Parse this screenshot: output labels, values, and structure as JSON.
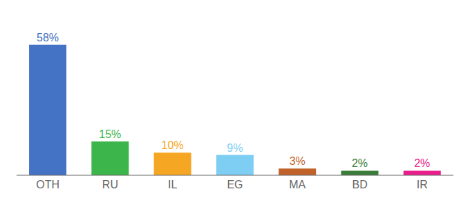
{
  "chart_data": {
    "type": "bar",
    "categories": [
      "OTH",
      "RU",
      "IL",
      "EG",
      "MA",
      "BD",
      "IR"
    ],
    "values": [
      58,
      15,
      10,
      9,
      3,
      2,
      2
    ],
    "value_labels": [
      "58%",
      "15%",
      "10%",
      "9%",
      "3%",
      "2%",
      "2%"
    ],
    "colors": [
      "#4472c4",
      "#3cb54a",
      "#f5a623",
      "#7ecef4",
      "#c0622a",
      "#3a7d3a",
      "#e91e8c"
    ],
    "ylim": [
      0,
      68
    ],
    "data_labels": true,
    "tick_labels": "x",
    "grid": false
  }
}
